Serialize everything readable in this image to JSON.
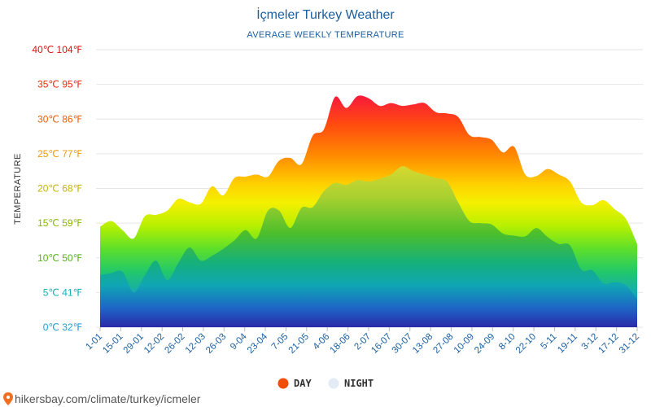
{
  "title": "İçmeler Turkey Weather",
  "subtitle": "AVERAGE WEEKLY TEMPERATURE",
  "footer": "hikersbay.com/climate/turkey/icmeler",
  "colors": {
    "day": "#f04e0a",
    "night": "#e3ebf4",
    "title": "#1a5fa0"
  },
  "chart_data": {
    "type": "area",
    "ylabel": "TEMPERATURE",
    "ylim": [
      0,
      40
    ],
    "y_ticks": [
      {
        "value": 0,
        "label": "0℃ 32℉",
        "color": "#1a9fd6"
      },
      {
        "value": 5,
        "label": "5℃ 41℉",
        "color": "#13b0b8"
      },
      {
        "value": 10,
        "label": "10℃ 50℉",
        "color": "#55b518"
      },
      {
        "value": 15,
        "label": "15℃ 59℉",
        "color": "#88b800"
      },
      {
        "value": 20,
        "label": "20℃ 68℉",
        "color": "#c9b400"
      },
      {
        "value": 25,
        "label": "25℃ 77℉",
        "color": "#f29b00"
      },
      {
        "value": 30,
        "label": "30℃ 86℉",
        "color": "#f25a00"
      },
      {
        "value": 35,
        "label": "35℃ 95℉",
        "color": "#ee2a0e"
      },
      {
        "value": 40,
        "label": "40℃ 104℉",
        "color": "#e01010"
      }
    ],
    "x_labels": [
      "1-01",
      "15-01",
      "29-01",
      "12-02",
      "26-02",
      "12-03",
      "26-03",
      "9-04",
      "23-04",
      "7-05",
      "21-05",
      "4-06",
      "18-06",
      "2-07",
      "16-07",
      "30-07",
      "13-08",
      "27-08",
      "10-09",
      "24-09",
      "8-10",
      "22-10",
      "5-11",
      "19-11",
      "3-12",
      "17-12",
      "31-12"
    ],
    "series": [
      {
        "name": "DAY",
        "values": [
          14.5,
          15.3,
          14.0,
          12.8,
          16.0,
          16.2,
          16.8,
          18.5,
          18.0,
          17.8,
          20.3,
          19.0,
          21.5,
          21.7,
          22.0,
          21.7,
          24.0,
          24.4,
          23.5,
          27.6,
          28.5,
          33.2,
          31.6,
          33.3,
          33.0,
          31.9,
          32.3,
          31.9,
          32.1,
          32.3,
          31.0,
          30.8,
          30.3,
          27.7,
          27.4,
          27.0,
          25.2,
          26.0,
          22.0,
          21.8,
          22.8,
          22.0,
          21.0,
          18.0,
          17.6,
          18.3,
          17.0,
          15.6,
          12.0
        ]
      },
      {
        "name": "NIGHT",
        "values": [
          7.5,
          7.8,
          8.0,
          5.0,
          7.5,
          9.6,
          6.8,
          9.3,
          11.5,
          9.6,
          10.3,
          11.3,
          12.5,
          14.0,
          12.8,
          16.8,
          16.8,
          14.3,
          17.2,
          17.3,
          19.6,
          20.8,
          20.5,
          21.2,
          21.0,
          21.4,
          22.0,
          23.2,
          22.5,
          22.0,
          21.5,
          21.0,
          18.0,
          15.3,
          15.0,
          14.8,
          13.5,
          13.2,
          13.1,
          14.3,
          13.0,
          12.0,
          11.8,
          8.3,
          8.2,
          6.3,
          6.5,
          6.0,
          4.0
        ]
      }
    ],
    "legend": {
      "position": "bottom-center",
      "entries": [
        "DAY",
        "NIGHT"
      ]
    },
    "grid": true
  }
}
